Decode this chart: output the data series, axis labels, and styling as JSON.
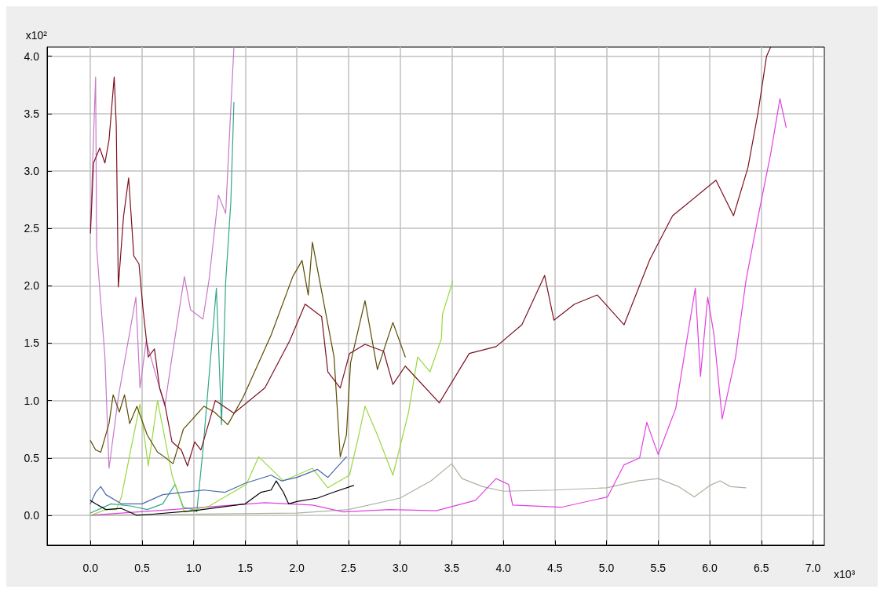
{
  "chart_data": {
    "type": "line",
    "xlabel": "x10³",
    "ylabel": "x10²",
    "xlim": [
      -0.42,
      7.11
    ],
    "ylim": [
      -0.26,
      4.08
    ],
    "xticks": [
      {
        "value": 0,
        "label": "0.0"
      },
      {
        "value": 0.5,
        "label": "0.5"
      },
      {
        "value": 1,
        "label": "1.0"
      },
      {
        "value": 1.5,
        "label": "1.5"
      },
      {
        "value": 2,
        "label": "2.0"
      },
      {
        "value": 2.5,
        "label": "2.5"
      },
      {
        "value": 3,
        "label": "3.0"
      },
      {
        "value": 3.5,
        "label": "3.5"
      },
      {
        "value": 4,
        "label": "4.0"
      },
      {
        "value": 4.5,
        "label": "4.5"
      },
      {
        "value": 5,
        "label": "5.0"
      },
      {
        "value": 5.5,
        "label": "5.5"
      },
      {
        "value": 6,
        "label": "6.0"
      },
      {
        "value": 6.5,
        "label": "6.5"
      },
      {
        "value": 7,
        "label": "7.0"
      }
    ],
    "yticks": [
      {
        "value": 0,
        "label": "0.0"
      },
      {
        "value": 0.5,
        "label": "0.5"
      },
      {
        "value": 1,
        "label": "1.0"
      },
      {
        "value": 1.5,
        "label": "1.5"
      },
      {
        "value": 2,
        "label": "2.0"
      },
      {
        "value": 2.5,
        "label": "2.5"
      },
      {
        "value": 3,
        "label": "3.0"
      },
      {
        "value": 3.5,
        "label": "3.5"
      },
      {
        "value": 4,
        "label": "4.0"
      }
    ],
    "grid": true,
    "marker": "none",
    "line_style": "solid",
    "series": [
      {
        "color": "#a8b4a0",
        "x": [
          0,
          1,
          2,
          2.5,
          3.0,
          3.3,
          3.5,
          3.6,
          3.8,
          4.0,
          4.5,
          5.0,
          5.3,
          5.5,
          5.7,
          5.85,
          6.0,
          6.1,
          6.2,
          6.35
        ],
        "values": [
          0,
          0.01,
          0.02,
          0.05,
          0.15,
          0.3,
          0.45,
          0.32,
          0.25,
          0.21,
          0.22,
          0.24,
          0.3,
          0.32,
          0.25,
          0.16,
          0.26,
          0.3,
          0.25,
          0.24
        ]
      },
      {
        "color": "#e040e0",
        "x": [
          0,
          0.79,
          1.69,
          2.15,
          2.45,
          2.9,
          3.35,
          3.73,
          3.93,
          4.05,
          4.09,
          4.56,
          5.01,
          5.17,
          5.32,
          5.39,
          5.5,
          5.67,
          5.86,
          5.91,
          5.98,
          6.04,
          6.12,
          6.25,
          6.35,
          6.47,
          6.59,
          6.68,
          6.74
        ],
        "values": [
          0,
          0.05,
          0.11,
          0.09,
          0.03,
          0.05,
          0.04,
          0.13,
          0.32,
          0.27,
          0.09,
          0.07,
          0.16,
          0.44,
          0.5,
          0.81,
          0.53,
          0.93,
          1.98,
          1.21,
          1.9,
          1.58,
          0.84,
          1.38,
          2.04,
          2.61,
          3.15,
          3.63,
          3.38
        ]
      },
      {
        "color": "#c878c8",
        "x": [
          0,
          0.05,
          0.06,
          0.14,
          0.18,
          0.27,
          0.44,
          0.48,
          0.54,
          0.72,
          0.79,
          0.91,
          0.97,
          1.09,
          1.15,
          1.24,
          1.31,
          1.36,
          1.39
        ],
        "values": [
          2.52,
          3.82,
          2.33,
          1.38,
          0.41,
          1.03,
          1.9,
          1.11,
          1.52,
          0.95,
          1.38,
          2.08,
          1.79,
          1.71,
          2.06,
          2.79,
          2.63,
          3.55,
          4.08
        ]
      },
      {
        "color": "#30a888",
        "x": [
          0,
          0.2,
          0.4,
          0.55,
          0.7,
          0.82,
          0.9,
          1.0,
          1.03,
          1.09,
          1.22,
          1.27,
          1.31,
          1.36,
          1.39
        ],
        "values": [
          0.02,
          0.1,
          0.08,
          0.05,
          0.1,
          0.27,
          0.07,
          0.05,
          0.03,
          0.57,
          1.98,
          0.79,
          2.03,
          2.73,
          3.6
        ]
      },
      {
        "color": "#98d840",
        "x": [
          0,
          0.15,
          0.25,
          0.3,
          0.39,
          0.48,
          0.56,
          0.65,
          0.79,
          0.91,
          1.15,
          1.51,
          1.63,
          1.87,
          2.15,
          2.3,
          2.51,
          2.6,
          2.66,
          2.78,
          2.93,
          3.08,
          3.17,
          3.29,
          3.4,
          3.41,
          3.51
        ],
        "values": [
          0,
          0.05,
          0.05,
          0.16,
          0.57,
          0.97,
          0.43,
          1.0,
          0.35,
          0.03,
          0.08,
          0.27,
          0.51,
          0.3,
          0.41,
          0.24,
          0.35,
          0.7,
          0.95,
          0.7,
          0.35,
          0.89,
          1.38,
          1.25,
          1.54,
          1.75,
          2.04
        ]
      },
      {
        "color": "#4868a8",
        "x": [
          0,
          0.05,
          0.1,
          0.15,
          0.3,
          0.5,
          0.7,
          0.9,
          1.1,
          1.3,
          1.5,
          1.75,
          1.85,
          2.0,
          2.2,
          2.3,
          2.48
        ],
        "values": [
          0.1,
          0.2,
          0.25,
          0.18,
          0.1,
          0.1,
          0.18,
          0.2,
          0.22,
          0.2,
          0.28,
          0.35,
          0.3,
          0.33,
          0.4,
          0.33,
          0.51
        ]
      },
      {
        "color": "#000000",
        "x": [
          0,
          0.05,
          0.15,
          0.3,
          0.45,
          0.6,
          1.0,
          1.5,
          1.65,
          1.75,
          1.8,
          1.87,
          1.92,
          2.0,
          2.2,
          2.35,
          2.55
        ],
        "values": [
          0.13,
          0.1,
          0.05,
          0.06,
          0,
          0.01,
          0.04,
          0.1,
          0.2,
          0.22,
          0.3,
          0.2,
          0.1,
          0.12,
          0.15,
          0.2,
          0.26
        ]
      },
      {
        "color": "#5a4a00",
        "x": [
          0,
          0.05,
          0.1,
          0.18,
          0.22,
          0.28,
          0.33,
          0.38,
          0.45,
          0.55,
          0.65,
          0.7,
          0.8,
          0.85,
          0.9,
          1.0,
          1.1,
          1.2,
          1.33,
          1.48,
          1.75,
          1.96,
          2.05,
          2.11,
          2.15,
          2.24,
          2.36,
          2.42,
          2.48,
          2.52,
          2.66,
          2.78,
          2.93,
          3.05
        ],
        "values": [
          0.65,
          0.57,
          0.55,
          0.8,
          1.05,
          0.9,
          1.05,
          0.8,
          0.95,
          0.7,
          0.55,
          0.52,
          0.45,
          0.6,
          0.75,
          0.85,
          0.95,
          0.9,
          0.79,
          1.03,
          1.57,
          2.08,
          2.22,
          1.92,
          2.38,
          1.95,
          1.38,
          0.51,
          0.7,
          1.33,
          1.87,
          1.27,
          1.68,
          1.38
        ]
      },
      {
        "color": "#7b1020",
        "x": [
          0,
          0.03,
          0.09,
          0.14,
          0.18,
          0.23,
          0.25,
          0.27,
          0.32,
          0.37,
          0.42,
          0.47,
          0.51,
          0.56,
          0.62,
          0.67,
          0.72,
          0.79,
          0.88,
          0.94,
          1.01,
          1.07,
          1.21,
          1.39,
          1.69,
          1.93,
          2.08,
          2.24,
          2.3,
          2.42,
          2.51,
          2.66,
          2.84,
          2.93,
          3.05,
          3.38,
          3.67,
          3.93,
          4.18,
          4.4,
          4.49,
          4.69,
          4.91,
          5.17,
          5.42,
          5.64,
          6.06,
          6.23,
          6.37,
          6.47,
          6.55,
          6.59
        ],
        "values": [
          2.46,
          3.07,
          3.2,
          3.07,
          3.27,
          3.82,
          3.4,
          1.99,
          2.6,
          2.94,
          2.26,
          2.19,
          1.79,
          1.38,
          1.45,
          1.11,
          0.97,
          0.64,
          0.57,
          0.43,
          0.64,
          0.57,
          1.0,
          0.89,
          1.11,
          1.52,
          1.84,
          1.73,
          1.25,
          1.11,
          1.41,
          1.49,
          1.43,
          1.14,
          1.3,
          0.98,
          1.41,
          1.47,
          1.66,
          2.09,
          1.7,
          1.84,
          1.92,
          1.66,
          2.23,
          2.61,
          2.92,
          2.61,
          3.03,
          3.52,
          4.0,
          4.08
        ]
      }
    ]
  }
}
